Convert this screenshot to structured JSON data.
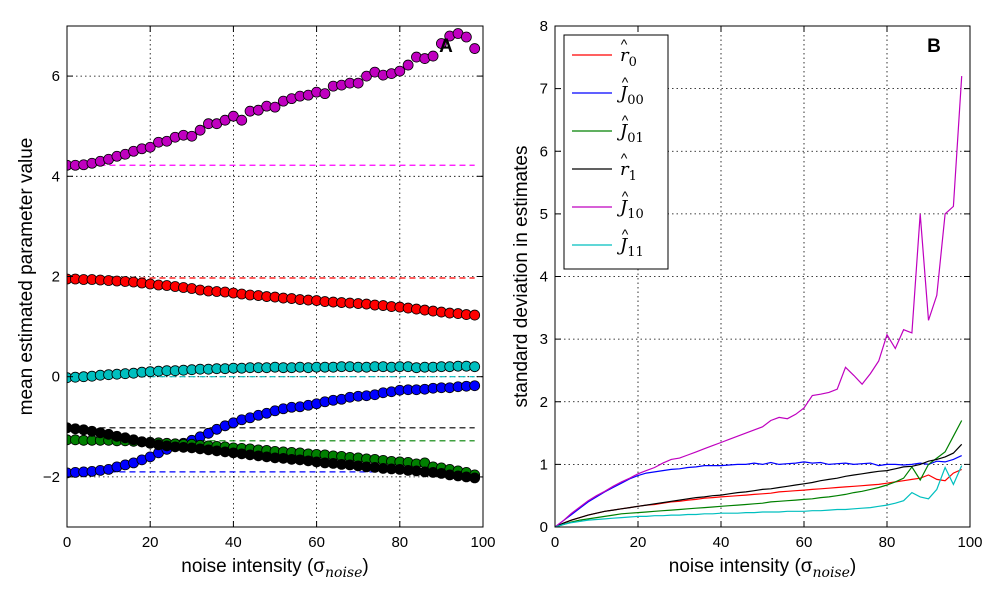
{
  "figure": {
    "title": ""
  },
  "chart_data": [
    {
      "panel": "A",
      "type": "scatter",
      "title": "",
      "panel_label": "A",
      "xlabel": "noise intensity (σ",
      "xlabel_sub": "noise",
      "xlabel_close": ")",
      "ylabel": "mean estimated parameter value",
      "xlim": [
        0,
        100
      ],
      "ylim": [
        -3,
        7
      ],
      "xticks": [
        0,
        20,
        40,
        60,
        80,
        100
      ],
      "yticks": [
        -2,
        0,
        2,
        4,
        6
      ],
      "ytick_labels": [
        "−2",
        "0",
        "2",
        "4",
        "6"
      ],
      "grid": true,
      "marker": "circle",
      "x": [
        0,
        2,
        4,
        6,
        8,
        10,
        12,
        14,
        16,
        18,
        20,
        22,
        24,
        26,
        28,
        30,
        32,
        34,
        36,
        38,
        40,
        42,
        44,
        46,
        48,
        50,
        52,
        54,
        56,
        58,
        60,
        62,
        64,
        66,
        68,
        70,
        72,
        74,
        76,
        78,
        80,
        82,
        84,
        86,
        88,
        90,
        92,
        94,
        96,
        98
      ],
      "series": [
        {
          "color": "#ff00ff",
          "marker_fill": "#c000c0",
          "true_value": 4.22,
          "values": [
            4.22,
            4.22,
            4.23,
            4.26,
            4.3,
            4.34,
            4.4,
            4.44,
            4.5,
            4.55,
            4.58,
            4.68,
            4.7,
            4.78,
            4.82,
            4.8,
            4.92,
            5.05,
            5.05,
            5.12,
            5.2,
            5.12,
            5.3,
            5.32,
            5.4,
            5.38,
            5.5,
            5.55,
            5.6,
            5.62,
            5.68,
            5.65,
            5.8,
            5.82,
            5.86,
            5.86,
            6.0,
            6.08,
            6.02,
            6.05,
            6.1,
            6.22,
            6.38,
            6.35,
            6.4,
            6.65,
            6.8,
            6.85,
            6.78,
            6.55
          ]
        },
        {
          "color": "#ff0000",
          "marker_fill": "#ff0000",
          "true_value": 1.97,
          "values": [
            1.95,
            1.95,
            1.94,
            1.94,
            1.93,
            1.92,
            1.91,
            1.9,
            1.89,
            1.87,
            1.85,
            1.83,
            1.82,
            1.8,
            1.78,
            1.76,
            1.73,
            1.71,
            1.7,
            1.69,
            1.67,
            1.65,
            1.63,
            1.62,
            1.6,
            1.59,
            1.57,
            1.56,
            1.54,
            1.53,
            1.52,
            1.5,
            1.49,
            1.48,
            1.47,
            1.46,
            1.45,
            1.43,
            1.42,
            1.4,
            1.39,
            1.37,
            1.35,
            1.33,
            1.31,
            1.29,
            1.27,
            1.26,
            1.24,
            1.23
          ]
        },
        {
          "color": "#00bfbf",
          "marker_fill": "#00bfbf",
          "true_value": 0.0,
          "values": [
            -0.02,
            -0.01,
            0.0,
            0.01,
            0.03,
            0.04,
            0.05,
            0.06,
            0.07,
            0.09,
            0.1,
            0.11,
            0.12,
            0.12,
            0.13,
            0.14,
            0.15,
            0.15,
            0.16,
            0.16,
            0.17,
            0.17,
            0.18,
            0.18,
            0.18,
            0.19,
            0.18,
            0.18,
            0.19,
            0.18,
            0.19,
            0.19,
            0.19,
            0.2,
            0.2,
            0.19,
            0.19,
            0.2,
            0.2,
            0.19,
            0.2,
            0.2,
            0.18,
            0.19,
            0.19,
            0.2,
            0.2,
            0.21,
            0.21,
            0.2
          ]
        },
        {
          "color": "#0000ff",
          "marker_fill": "#0000ff",
          "true_value": -1.9,
          "values": [
            -1.92,
            -1.91,
            -1.9,
            -1.89,
            -1.87,
            -1.85,
            -1.8,
            -1.76,
            -1.72,
            -1.66,
            -1.6,
            -1.52,
            -1.45,
            -1.38,
            -1.33,
            -1.27,
            -1.2,
            -1.13,
            -1.05,
            -0.98,
            -0.92,
            -0.86,
            -0.82,
            -0.77,
            -0.73,
            -0.68,
            -0.64,
            -0.61,
            -0.6,
            -0.57,
            -0.54,
            -0.5,
            -0.47,
            -0.45,
            -0.41,
            -0.39,
            -0.38,
            -0.36,
            -0.32,
            -0.3,
            -0.27,
            -0.26,
            -0.26,
            -0.25,
            -0.23,
            -0.22,
            -0.22,
            -0.2,
            -0.19,
            -0.18
          ]
        },
        {
          "color": "#008000",
          "marker_fill": "#008000",
          "true_value": -1.28,
          "values": [
            -1.26,
            -1.26,
            -1.27,
            -1.27,
            -1.27,
            -1.27,
            -1.28,
            -1.28,
            -1.29,
            -1.3,
            -1.31,
            -1.32,
            -1.33,
            -1.34,
            -1.35,
            -1.35,
            -1.37,
            -1.38,
            -1.39,
            -1.4,
            -1.42,
            -1.43,
            -1.44,
            -1.46,
            -1.47,
            -1.49,
            -1.5,
            -1.51,
            -1.52,
            -1.54,
            -1.55,
            -1.56,
            -1.58,
            -1.59,
            -1.61,
            -1.62,
            -1.64,
            -1.65,
            -1.67,
            -1.69,
            -1.7,
            -1.71,
            -1.74,
            -1.72,
            -1.8,
            -1.82,
            -1.85,
            -1.88,
            -1.91,
            -1.96
          ]
        },
        {
          "color": "#000000",
          "marker_fill": "#000000",
          "true_value": -1.02,
          "values": [
            -1.02,
            -1.04,
            -1.06,
            -1.09,
            -1.12,
            -1.15,
            -1.19,
            -1.22,
            -1.26,
            -1.3,
            -1.33,
            -1.36,
            -1.38,
            -1.4,
            -1.41,
            -1.42,
            -1.44,
            -1.46,
            -1.48,
            -1.5,
            -1.52,
            -1.54,
            -1.56,
            -1.58,
            -1.6,
            -1.62,
            -1.63,
            -1.65,
            -1.66,
            -1.68,
            -1.7,
            -1.72,
            -1.73,
            -1.75,
            -1.76,
            -1.78,
            -1.8,
            -1.81,
            -1.83,
            -1.84,
            -1.85,
            -1.87,
            -1.88,
            -1.9,
            -1.91,
            -1.93,
            -1.96,
            -1.98,
            -2.0,
            -2.02
          ]
        }
      ]
    },
    {
      "panel": "B",
      "type": "line",
      "title": "",
      "panel_label": "B",
      "xlabel": "noise intensity (σ",
      "xlabel_sub": "noise",
      "xlabel_close": ")",
      "ylabel": "standard deviation in estimates",
      "xlim": [
        0,
        100
      ],
      "ylim": [
        0,
        8
      ],
      "xticks": [
        0,
        20,
        40,
        60,
        80,
        100
      ],
      "yticks": [
        0,
        1,
        2,
        3,
        4,
        5,
        6,
        7,
        8
      ],
      "grid": true,
      "legend_position": "top-left",
      "x": [
        0,
        2,
        4,
        6,
        8,
        10,
        12,
        14,
        16,
        18,
        20,
        22,
        24,
        26,
        28,
        30,
        32,
        34,
        36,
        38,
        40,
        42,
        44,
        46,
        48,
        50,
        52,
        54,
        56,
        58,
        60,
        62,
        64,
        66,
        68,
        70,
        72,
        74,
        76,
        78,
        80,
        82,
        84,
        86,
        88,
        90,
        92,
        94,
        96,
        98
      ],
      "series": [
        {
          "base": "r",
          "mark": "^",
          "sub": "0",
          "color": "#ff0000",
          "values": [
            0.0,
            0.06,
            0.11,
            0.15,
            0.19,
            0.22,
            0.25,
            0.27,
            0.29,
            0.31,
            0.33,
            0.35,
            0.36,
            0.38,
            0.4,
            0.41,
            0.43,
            0.44,
            0.46,
            0.47,
            0.48,
            0.49,
            0.5,
            0.51,
            0.52,
            0.53,
            0.54,
            0.56,
            0.57,
            0.58,
            0.59,
            0.6,
            0.61,
            0.62,
            0.63,
            0.64,
            0.65,
            0.66,
            0.67,
            0.68,
            0.7,
            0.72,
            0.74,
            0.76,
            0.78,
            0.83,
            0.76,
            0.74,
            0.86,
            0.92
          ]
        },
        {
          "base": "J",
          "mark": "^",
          "sub": "00",
          "color": "#0000ff",
          "values": [
            0.0,
            0.1,
            0.2,
            0.3,
            0.4,
            0.48,
            0.56,
            0.63,
            0.7,
            0.77,
            0.82,
            0.86,
            0.88,
            0.9,
            0.92,
            0.93,
            0.95,
            0.96,
            0.98,
            0.98,
            0.98,
            0.99,
            1.0,
            1.0,
            1.02,
            1.0,
            1.03,
            1.0,
            1.01,
            1.02,
            1.04,
            1.02,
            1.03,
            1.0,
            1.01,
            1.02,
            1.0,
            1.01,
            1.02,
            0.98,
            1.0,
            1.0,
            0.99,
            1.0,
            1.02,
            1.0,
            1.05,
            1.04,
            1.08,
            1.14
          ]
        },
        {
          "base": "J",
          "mark": "^",
          "sub": "01",
          "color": "#008000",
          "values": [
            0.0,
            0.04,
            0.08,
            0.11,
            0.13,
            0.15,
            0.17,
            0.19,
            0.21,
            0.22,
            0.23,
            0.24,
            0.25,
            0.26,
            0.27,
            0.28,
            0.29,
            0.3,
            0.31,
            0.32,
            0.33,
            0.34,
            0.35,
            0.36,
            0.37,
            0.38,
            0.4,
            0.41,
            0.42,
            0.43,
            0.44,
            0.45,
            0.47,
            0.48,
            0.5,
            0.52,
            0.55,
            0.57,
            0.6,
            0.63,
            0.67,
            0.72,
            0.78,
            0.96,
            0.75,
            1.0,
            1.1,
            1.2,
            1.45,
            1.7
          ]
        },
        {
          "base": "r",
          "mark": "^",
          "sub": "1",
          "color": "#000000",
          "values": [
            0.0,
            0.06,
            0.11,
            0.15,
            0.19,
            0.22,
            0.25,
            0.27,
            0.29,
            0.31,
            0.33,
            0.35,
            0.37,
            0.39,
            0.41,
            0.43,
            0.45,
            0.47,
            0.48,
            0.5,
            0.51,
            0.53,
            0.55,
            0.56,
            0.58,
            0.6,
            0.61,
            0.63,
            0.65,
            0.67,
            0.69,
            0.71,
            0.74,
            0.76,
            0.78,
            0.81,
            0.83,
            0.85,
            0.87,
            0.89,
            0.9,
            0.93,
            0.96,
            0.97,
            1.0,
            1.05,
            1.08,
            1.12,
            1.18,
            1.32
          ]
        },
        {
          "base": "J",
          "mark": "^",
          "sub": "10",
          "color": "#bf00bf",
          "values": [
            0.0,
            0.1,
            0.22,
            0.32,
            0.42,
            0.5,
            0.57,
            0.65,
            0.72,
            0.78,
            0.85,
            0.9,
            0.95,
            1.02,
            1.08,
            1.1,
            1.15,
            1.2,
            1.25,
            1.3,
            1.35,
            1.4,
            1.45,
            1.5,
            1.55,
            1.6,
            1.7,
            1.75,
            1.73,
            1.8,
            1.9,
            2.1,
            2.12,
            2.15,
            2.2,
            2.55,
            2.42,
            2.28,
            2.45,
            2.65,
            3.07,
            2.85,
            3.15,
            3.1,
            5.0,
            3.3,
            3.7,
            5.0,
            5.12,
            7.2
          ]
        },
        {
          "base": "J",
          "mark": "^",
          "sub": "11",
          "color": "#00bfbf",
          "values": [
            0.0,
            0.04,
            0.07,
            0.09,
            0.11,
            0.12,
            0.13,
            0.14,
            0.15,
            0.16,
            0.17,
            0.17,
            0.18,
            0.18,
            0.19,
            0.19,
            0.2,
            0.2,
            0.21,
            0.21,
            0.22,
            0.22,
            0.22,
            0.23,
            0.23,
            0.24,
            0.24,
            0.24,
            0.25,
            0.25,
            0.25,
            0.26,
            0.26,
            0.27,
            0.28,
            0.28,
            0.29,
            0.3,
            0.31,
            0.33,
            0.35,
            0.38,
            0.42,
            0.55,
            0.48,
            0.45,
            0.6,
            0.95,
            0.68,
            0.98
          ]
        }
      ]
    }
  ]
}
